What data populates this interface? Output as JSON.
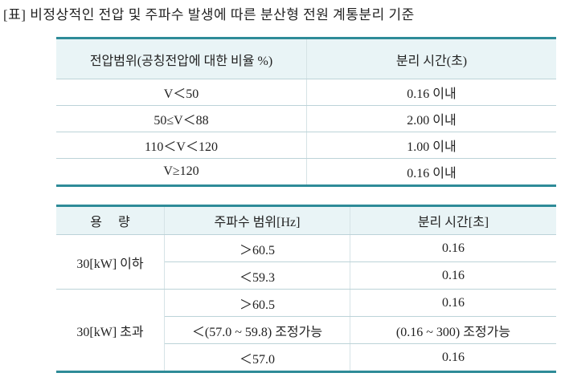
{
  "title": "[표] 비정상적인 전압 및 주파수 발생에 따른 분산형 전원 계통분리 기준",
  "table1": {
    "headers": [
      "전압범위(공칭전압에 대한 비율 %)",
      "분리 시간(초)"
    ],
    "rows": [
      [
        "V＜50",
        "0.16 이내"
      ],
      [
        "50≤V＜88",
        "2.00 이내"
      ],
      [
        "110＜V＜120",
        "1.00 이내"
      ],
      [
        "V≥120",
        "0.16 이내"
      ]
    ]
  },
  "table2": {
    "headers": [
      "용　 량",
      "주파수 범위[Hz]",
      "분리 시간[초]"
    ],
    "groups": [
      {
        "capacity": "30[kW] 이하",
        "rows": [
          [
            "＞60.5",
            "0.16"
          ],
          [
            "＜59.3",
            "0.16"
          ]
        ]
      },
      {
        "capacity": "30[kW] 초과",
        "rows": [
          [
            "＞60.5",
            "0.16"
          ],
          [
            "＜(57.0 ~ 59.8) 조정가능",
            "(0.16 ~ 300) 조정가능"
          ],
          [
            "＜57.0",
            "0.16"
          ]
        ]
      }
    ]
  }
}
